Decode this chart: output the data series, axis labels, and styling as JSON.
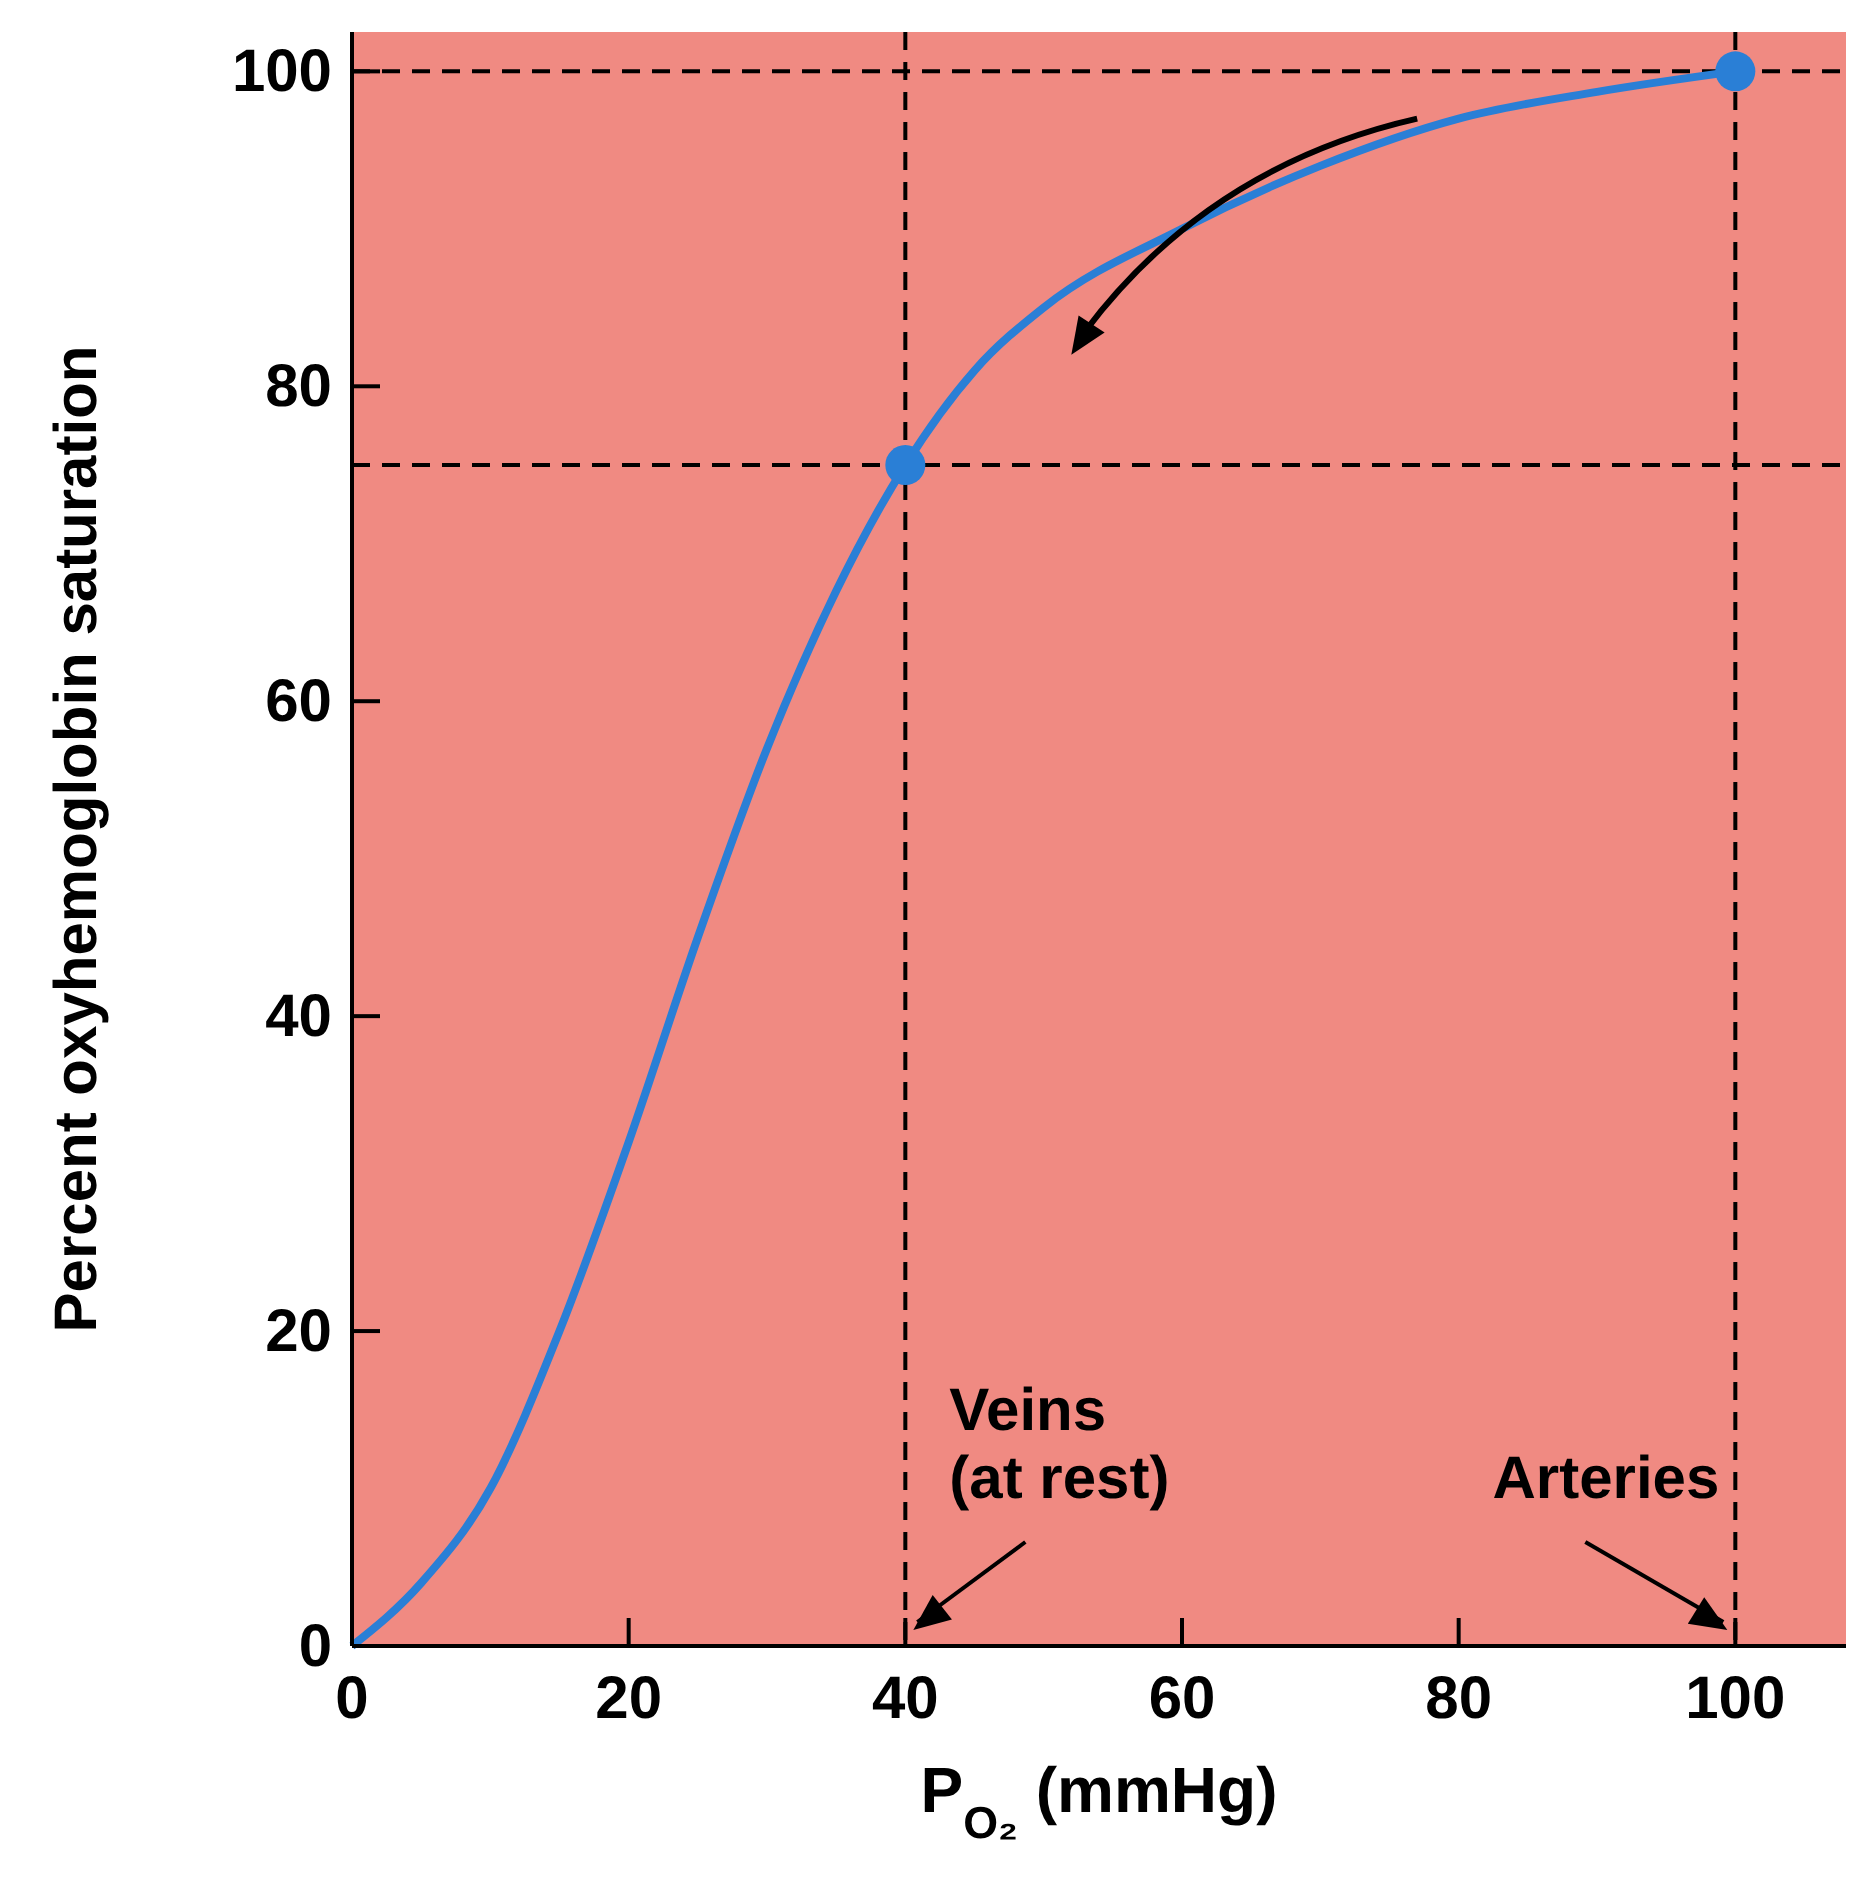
{
  "chart_data": {
    "type": "line",
    "xlabel": "P$_{O₂}$ (mmHg)",
    "ylabel": "Percent oxyhemoglobin saturation",
    "xlim": [
      0,
      108
    ],
    "xticks": [
      0,
      20,
      40,
      60,
      80,
      100
    ],
    "ylim": [
      0,
      102.5
    ],
    "yticks": [
      0,
      20,
      40,
      60,
      80,
      100
    ],
    "grid": false,
    "series": [
      {
        "color": "#2a7fd6",
        "marker": "none",
        "line_style": "solid",
        "x": [
          0,
          5,
          10,
          15,
          20,
          25,
          30,
          35,
          40,
          45,
          50,
          60,
          70,
          80,
          90,
          100
        ],
        "values": [
          0,
          4,
          10,
          20,
          32,
          45,
          57,
          67,
          75,
          81,
          85,
          90,
          94,
          97,
          98.7,
          100
        ]
      },
      {
        "type": "scatter",
        "color": "#2a7fd6",
        "marker": "circle",
        "x": [
          40,
          100
        ],
        "values": [
          75,
          100
        ]
      }
    ],
    "ref_lines": [
      {
        "axis": "y",
        "value": 100,
        "color": "#000000",
        "line_style": "dashed"
      },
      {
        "axis": "y",
        "value": 75,
        "color": "#000000",
        "line_style": "dashed"
      },
      {
        "axis": "x",
        "value": 40,
        "color": "#000000",
        "line_style": "dashed"
      },
      {
        "axis": "x",
        "value": 100,
        "color": "#000000",
        "line_style": "dashed"
      }
    ],
    "annotations": [
      {
        "text": "Veins\n(at rest)",
        "x": 40,
        "y": 0
      },
      {
        "text": "Arteries",
        "x": 100,
        "y": 0
      }
    ]
  }
}
